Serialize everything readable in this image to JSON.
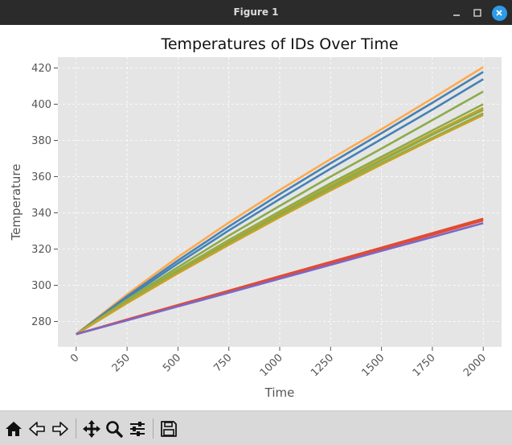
{
  "window": {
    "title": "Figure 1"
  },
  "toolbar": {
    "tools": [
      "home-icon",
      "back-arrow-icon",
      "forward-arrow-icon",
      "pan-icon",
      "zoom-icon",
      "configure-subplots-icon",
      "save-icon"
    ]
  },
  "colors": {
    "plot_bg": "#e5e5e5",
    "grid": "#ffffff",
    "titlebar": "#2b2b2b",
    "close_button": "#2d9ce8"
  },
  "chart_data": {
    "type": "line",
    "title": "Temperatures of IDs Over Time",
    "xlabel": "Time",
    "ylabel": "Temperature",
    "xlim": [
      -90,
      2090
    ],
    "ylim": [
      266,
      426
    ],
    "xticks": [
      0,
      250,
      500,
      750,
      1000,
      1250,
      1500,
      1750,
      2000
    ],
    "xtick_labels": [
      "0",
      "250",
      "500",
      "750",
      "1000",
      "1250",
      "1500",
      "1750",
      "2000"
    ],
    "yticks": [
      280,
      300,
      320,
      340,
      360,
      380,
      400,
      420
    ],
    "ytick_labels": [
      "280",
      "300",
      "320",
      "340",
      "360",
      "380",
      "400",
      "420"
    ],
    "xtick_rotation": 45,
    "grid": true,
    "legend": false,
    "x": [
      0,
      250,
      500,
      750,
      1000,
      1250,
      1500,
      1750,
      2000
    ],
    "series": [
      {
        "color": "#ffa94d",
        "values": [
          273,
          295.0,
          315.6,
          334.6,
          352.6,
          369.7,
          386.2,
          403.2,
          420.5
        ]
      },
      {
        "color": "#4682b4",
        "values": [
          273,
          293.9,
          313.7,
          332.4,
          350.3,
          367.4,
          384.0,
          400.8,
          417.8
        ]
      },
      {
        "color": "#4682b4",
        "values": [
          273,
          293.0,
          312.1,
          330.3,
          347.6,
          364.4,
          380.7,
          397.0,
          413.8
        ]
      },
      {
        "color": "#8cab4a",
        "values": [
          273,
          292.0,
          310.0,
          327.4,
          343.8,
          360.0,
          375.5,
          391.2,
          407.0
        ]
      },
      {
        "color": "#8cab4a",
        "values": [
          273,
          291.3,
          308.5,
          325.0,
          340.8,
          356.3,
          371.0,
          385.5,
          400.0
        ]
      },
      {
        "color": "#c9a227",
        "values": [
          273,
          290.9,
          307.9,
          324.2,
          339.8,
          355.0,
          369.6,
          384.0,
          398.0
        ]
      },
      {
        "color": "#8cab4a",
        "values": [
          273,
          290.7,
          307.6,
          323.7,
          339.2,
          354.3,
          368.9,
          383.1,
          396.8
        ]
      },
      {
        "color": "#8cab4a",
        "values": [
          273,
          290.4,
          307.0,
          322.8,
          338.2,
          353.1,
          367.5,
          381.4,
          395.0
        ]
      },
      {
        "color": "#c9a227",
        "values": [
          273,
          290.2,
          306.6,
          322.3,
          337.6,
          352.4,
          366.7,
          380.6,
          394.0
        ]
      },
      {
        "color": "#e24a33",
        "values": [
          273,
          281.1,
          289.1,
          297.0,
          305.0,
          312.9,
          320.8,
          328.8,
          336.8
        ]
      },
      {
        "color": "#e24a33",
        "values": [
          273,
          280.8,
          288.7,
          296.5,
          304.4,
          312.2,
          320.0,
          327.9,
          335.8
        ]
      },
      {
        "color": "#7a68c8",
        "values": [
          273,
          280.6,
          288.3,
          295.9,
          303.6,
          311.3,
          319.0,
          326.6,
          334.3
        ]
      }
    ]
  }
}
